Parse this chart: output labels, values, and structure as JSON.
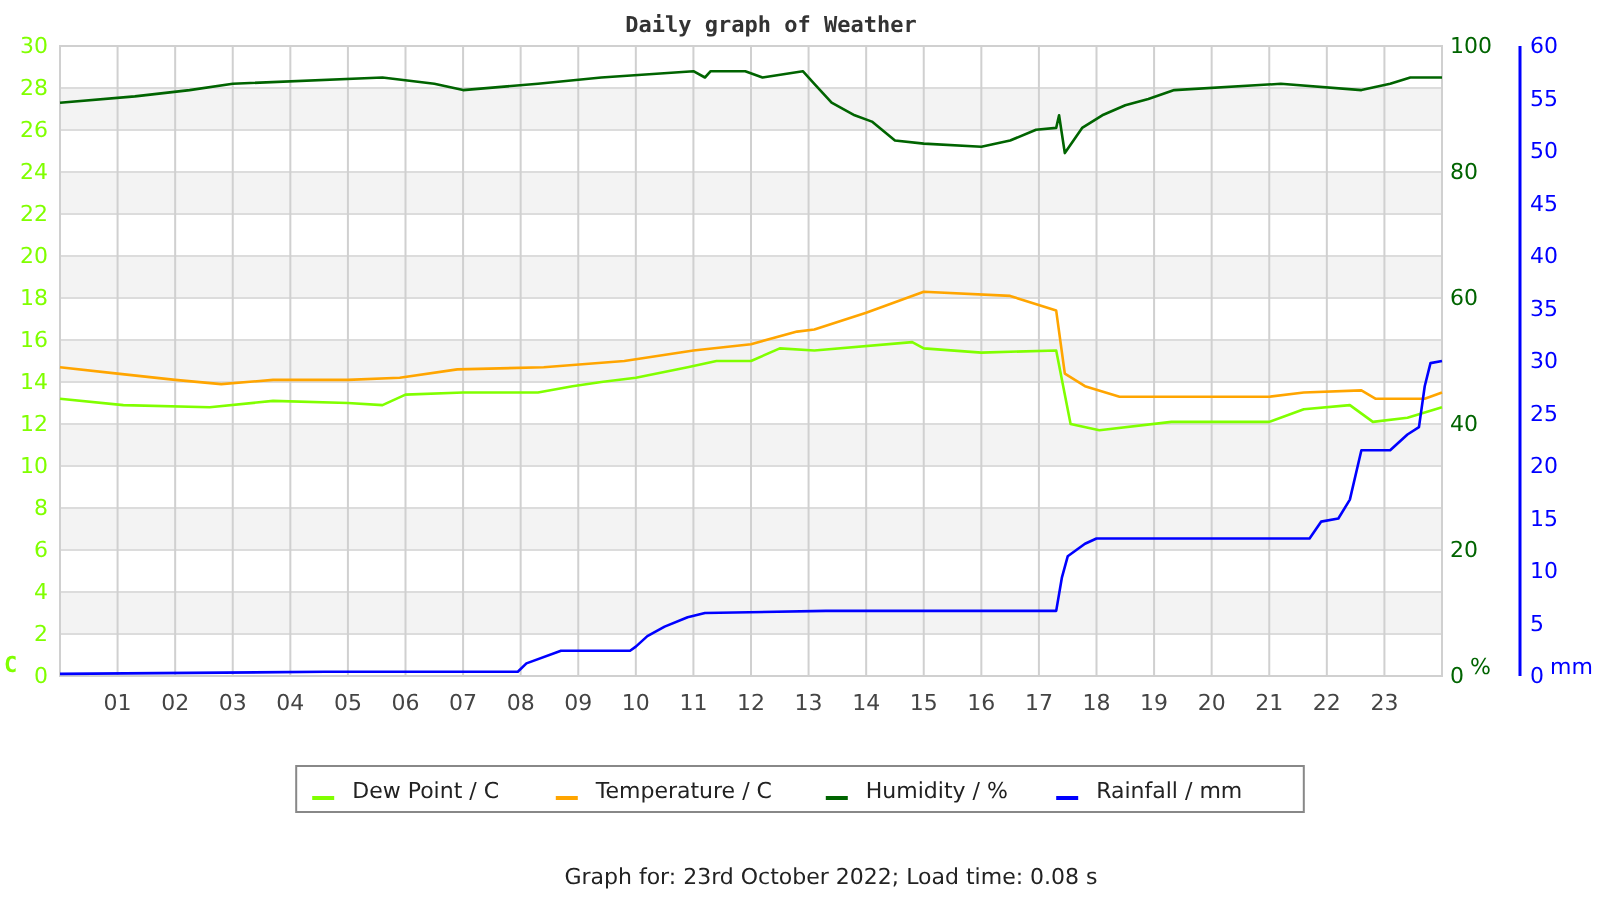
{
  "chart_data": {
    "type": "line",
    "title": "Daily graph of Weather",
    "ylabel": "C",
    "y2label": "%",
    "y3label": "mm",
    "annotations": [
      "Graph for: 23rd October 2022; Load time: 0.08 s"
    ],
    "xlim": [
      0,
      24
    ],
    "xticks": [
      {
        "value": 1,
        "label": "01"
      },
      {
        "value": 2,
        "label": "02"
      },
      {
        "value": 3,
        "label": "03"
      },
      {
        "value": 4,
        "label": "04"
      },
      {
        "value": 5,
        "label": "05"
      },
      {
        "value": 6,
        "label": "06"
      },
      {
        "value": 7,
        "label": "07"
      },
      {
        "value": 8,
        "label": "08"
      },
      {
        "value": 9,
        "label": "09"
      },
      {
        "value": 10,
        "label": "10"
      },
      {
        "value": 11,
        "label": "11"
      },
      {
        "value": 12,
        "label": "12"
      },
      {
        "value": 13,
        "label": "13"
      },
      {
        "value": 14,
        "label": "14"
      },
      {
        "value": 15,
        "label": "15"
      },
      {
        "value": 16,
        "label": "16"
      },
      {
        "value": 17,
        "label": "17"
      },
      {
        "value": 18,
        "label": "18"
      },
      {
        "value": 19,
        "label": "19"
      },
      {
        "value": 20,
        "label": "20"
      },
      {
        "value": 21,
        "label": "21"
      },
      {
        "value": 22,
        "label": "22"
      },
      {
        "value": 23,
        "label": "23"
      }
    ],
    "ylim": [
      0,
      30
    ],
    "yticks": [
      0,
      2,
      4,
      6,
      8,
      10,
      12,
      14,
      16,
      18,
      20,
      22,
      24,
      26,
      28,
      30
    ],
    "y2lim": [
      0,
      100
    ],
    "y2ticks": [
      0,
      20,
      40,
      60,
      80,
      100
    ],
    "y3lim": [
      0,
      60
    ],
    "y3ticks": [
      0,
      5,
      10,
      15,
      20,
      25,
      30,
      35,
      40,
      45,
      50,
      55,
      60
    ],
    "grid": true,
    "legend": "bottom",
    "series": [
      {
        "name": "Dew Point / C",
        "color": "#80ff00",
        "x": [
          0,
          1.1,
          2.6,
          3.7,
          5,
          5.6,
          6,
          7,
          8.3,
          8.9,
          9.4,
          10,
          10.9,
          11.4,
          12,
          12.5,
          13.1,
          14.8,
          15,
          16,
          17.3,
          17.55,
          18.05,
          19.3,
          21,
          21.6,
          22.4,
          22.8,
          23.4,
          24
        ],
        "values": [
          13.2,
          12.9,
          12.8,
          13.1,
          13.0,
          12.9,
          13.4,
          13.5,
          13.5,
          13.8,
          14.0,
          14.2,
          14.7,
          15.0,
          15.0,
          15.6,
          15.5,
          15.9,
          15.6,
          15.4,
          15.5,
          12.0,
          11.7,
          12.1,
          12.1,
          12.7,
          12.9,
          12.1,
          12.3,
          12.8
        ]
      },
      {
        "name": "Temperature / C",
        "color": "#ffa500",
        "x": [
          0,
          1,
          2,
          2.8,
          3.7,
          5,
          5.9,
          6.9,
          8.4,
          9.8,
          11,
          12,
          12.8,
          13.1,
          14,
          15,
          16.5,
          17.3,
          17.45,
          17.8,
          18.4,
          21,
          21.6,
          22.6,
          22.85,
          23.7,
          24
        ],
        "values": [
          14.7,
          14.4,
          14.1,
          13.9,
          14.1,
          14.1,
          14.2,
          14.6,
          14.7,
          15.0,
          15.5,
          15.8,
          16.4,
          16.5,
          17.3,
          18.3,
          18.1,
          17.4,
          14.4,
          13.8,
          13.3,
          13.3,
          13.5,
          13.6,
          13.2,
          13.2,
          13.5
        ]
      },
      {
        "name": "Humidity / %",
        "color": "#006400",
        "axis": "y2",
        "x": [
          0,
          1.3,
          2.25,
          3,
          5.6,
          6.5,
          7,
          8.3,
          9.4,
          11,
          11.2,
          11.3,
          11.9,
          12.2,
          12.9,
          13.1,
          13.4,
          13.8,
          14.1,
          14.5,
          15,
          16,
          16.5,
          16.95,
          17.3,
          17.35,
          17.45,
          17.75,
          18.1,
          18.5,
          18.9,
          19.35,
          21.2,
          22.6,
          23.1,
          23.45,
          24
        ],
        "values": [
          91,
          92,
          93,
          94,
          95,
          94,
          93,
          94,
          95,
          96,
          95,
          96,
          96,
          95,
          96,
          94,
          91,
          89,
          88,
          85,
          84.5,
          84,
          85,
          86.7,
          87,
          89,
          83,
          87,
          89,
          90.6,
          91.6,
          93,
          94,
          93,
          94,
          95,
          95
        ]
      },
      {
        "name": "Rainfall / mm",
        "color": "#0000ff",
        "axis": "y3",
        "x": [
          0,
          4.6,
          7.95,
          8.1,
          8.7,
          9.9,
          10,
          10.2,
          10.5,
          10.9,
          11.2,
          13.3,
          17.3,
          17.4,
          17.5,
          17.8,
          18,
          21.7,
          21.9,
          22.2,
          22.4,
          22.6,
          23.1,
          23.4,
          23.6,
          23.7,
          23.8,
          24
        ],
        "values": [
          0.2,
          0.4,
          0.4,
          1.2,
          2.4,
          2.4,
          2.8,
          3.8,
          4.7,
          5.6,
          6.0,
          6.2,
          6.2,
          9.4,
          11.4,
          12.6,
          13.1,
          13.1,
          14.7,
          15.0,
          16.8,
          21.5,
          21.5,
          23,
          23.7,
          27.6,
          29.8,
          30
        ]
      }
    ]
  }
}
